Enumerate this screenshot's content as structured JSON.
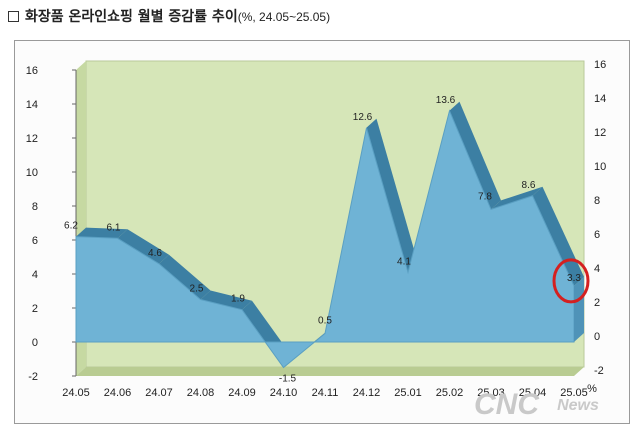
{
  "title": {
    "main": "화장품 온라인쇼핑 월별 증감률 추이",
    "sub": "(%, 24.05~25.05)"
  },
  "chart_data": {
    "type": "area",
    "categories": [
      "24.05",
      "24.06",
      "24.07",
      "24.08",
      "24.09",
      "24.10",
      "24.11",
      "24.12",
      "25.01",
      "25.02",
      "25.03",
      "25.04",
      "25.05"
    ],
    "series": [
      {
        "values": [
          6.2,
          6.1,
          4.6,
          2.5,
          1.9,
          -1.5,
          0.5,
          12.6,
          4.1,
          13.6,
          7.8,
          8.6,
          3.3
        ]
      }
    ],
    "data_labels": [
      "6.2",
      "6.1",
      "4.6",
      "2.5",
      "1.9",
      "-1.5",
      "0.5",
      "12.6",
      "4.1",
      "13.6",
      "7.8",
      "8.6",
      "3.3"
    ],
    "ylim": [
      -2,
      16
    ],
    "y_ticks": [
      "-2",
      "0",
      "2",
      "4",
      "6",
      "8",
      "10",
      "12",
      "14",
      "16"
    ],
    "right_axis_unit": "%",
    "grid": false,
    "highlight_category": "25.05",
    "colors": {
      "area": "#6fb3d5",
      "area_edge": "#3c7fa3",
      "plot_bg": "#d6e6b8",
      "highlight": "#d42020"
    }
  },
  "watermark": {
    "brand": "CNC",
    "sub": "News"
  }
}
